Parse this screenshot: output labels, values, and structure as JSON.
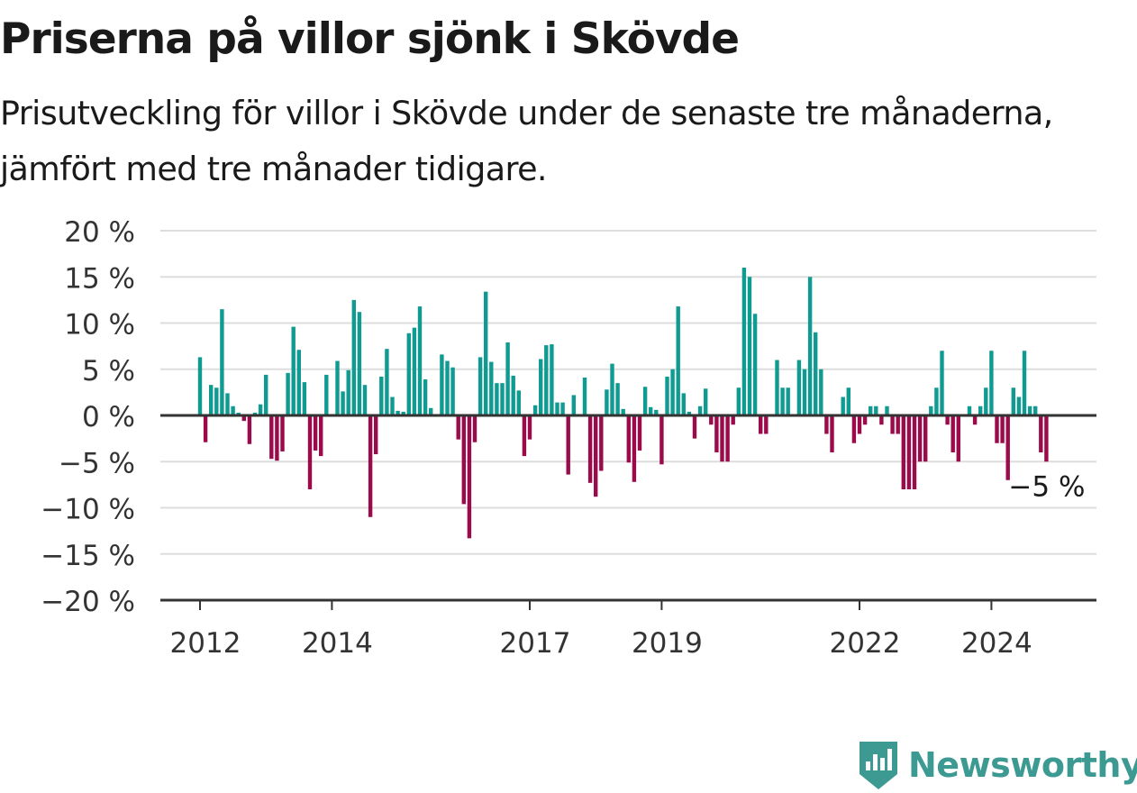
{
  "title": "Priserna på villor sjönk i Skövde",
  "subtitle": "Prisutveckling för villor i Skövde under de senaste tre månaderna, jämfört med tre månader tidigare.",
  "brand": {
    "name": "Newsworthy",
    "icon": "newsworthy-logo-icon",
    "color": "#3c9a92"
  },
  "chart_data": {
    "type": "bar",
    "title": "",
    "xlabel": "",
    "ylabel": "",
    "ylim": [
      -20,
      20
    ],
    "yticks": [
      20,
      15,
      10,
      5,
      0,
      -5,
      -10,
      -15,
      -20
    ],
    "ytick_labels": [
      "20 %",
      "15 %",
      "10 %",
      "5 %",
      "0 %",
      "−5 %",
      "−10 %",
      "−15 %",
      "−20 %"
    ],
    "xticks": [
      2012,
      2014,
      2017,
      2019,
      2022,
      2024
    ],
    "xtick_labels": [
      "2012",
      "2014",
      "2017",
      "2019",
      "2022",
      "2024"
    ],
    "x_start": "2012-01",
    "x_step": "month",
    "grid": true,
    "legend": "none",
    "colors": {
      "positive": "#0f9b91",
      "negative": "#9b0a4a",
      "axis": "#333333",
      "grid": "#dddddd"
    },
    "annotation": {
      "text": "−5 %",
      "at_last_bar": true
    },
    "values": [
      6.3,
      -2.9,
      3.3,
      3.0,
      11.5,
      2.4,
      1.0,
      0.3,
      -0.6,
      -3.1,
      0.3,
      1.2,
      4.4,
      -4.7,
      -4.9,
      -3.9,
      4.6,
      9.6,
      7.1,
      3.6,
      -8.0,
      -3.8,
      -4.4,
      4.4,
      0.1,
      5.9,
      2.6,
      4.9,
      12.5,
      11.2,
      3.3,
      -11.0,
      -4.2,
      4.2,
      7.2,
      2.0,
      0.5,
      0.4,
      8.9,
      9.5,
      11.8,
      3.9,
      0.8,
      0.1,
      6.6,
      5.9,
      5.2,
      -2.6,
      -9.6,
      -13.3,
      -2.9,
      6.3,
      13.4,
      5.8,
      3.5,
      3.5,
      7.9,
      4.3,
      2.7,
      -4.4,
      -2.6,
      1.1,
      6.1,
      7.6,
      7.7,
      1.4,
      1.4,
      -6.4,
      2.2,
      0.1,
      4.1,
      -7.3,
      -8.8,
      -6.0,
      2.8,
      5.6,
      3.5,
      0.7,
      -5.1,
      -7.2,
      -3.8,
      3.1,
      0.9,
      0.6,
      -5.3,
      4.2,
      5.0,
      11.8,
      2.4,
      0.4,
      -2.5,
      1.0,
      2.9,
      -1.0,
      -4.0,
      -5.0,
      -5.0,
      -1.0,
      3.0,
      16.0,
      15.0,
      11.0,
      -2.0,
      -2.0,
      0.0,
      6.0,
      3.0,
      3.0,
      0.0,
      6.0,
      5.0,
      15.0,
      9.0,
      5.0,
      -2.0,
      -4.0,
      0.0,
      2.0,
      3.0,
      -3.0,
      -2.0,
      -1.0,
      1.0,
      1.0,
      -1.0,
      1.0,
      -2.0,
      -2.0,
      -8.0,
      -8.0,
      -8.0,
      -5.0,
      -5.0,
      1.0,
      3.0,
      7.0,
      -1.0,
      -4.0,
      -5.0,
      0.0,
      1.0,
      -1.0,
      1.0,
      3.0,
      7.0,
      -3.0,
      -3.0,
      -7.0,
      3.0,
      2.0,
      7.0,
      1.0,
      1.0,
      -4.0,
      -5.0
    ]
  }
}
